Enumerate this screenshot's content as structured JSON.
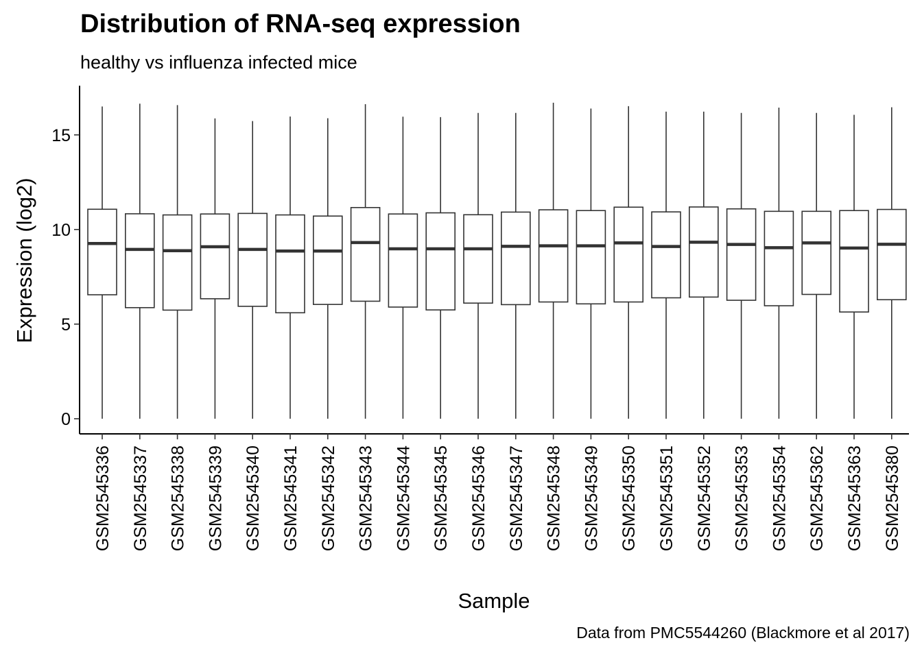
{
  "chart_data": {
    "type": "boxplot",
    "title": "Distribution of RNA-seq expression",
    "subtitle": "healthy vs influenza infected mice",
    "xlabel": "Sample",
    "ylabel": "Expression (log2)",
    "caption": "Data from PMC5544260 (Blackmore et al 2017)",
    "ylim": [
      -0.8,
      17.6
    ],
    "yticks": [
      0,
      5,
      10,
      15
    ],
    "grid": false,
    "legend": "none",
    "colors": {
      "box_stroke": "#333333",
      "box_fill": "#ffffff",
      "axis": "#000000"
    },
    "categories": [
      "GSM2545336",
      "GSM2545337",
      "GSM2545338",
      "GSM2545339",
      "GSM2545340",
      "GSM2545341",
      "GSM2545342",
      "GSM2545343",
      "GSM2545344",
      "GSM2545345",
      "GSM2545346",
      "GSM2545347",
      "GSM2545348",
      "GSM2545349",
      "GSM2545350",
      "GSM2545351",
      "GSM2545352",
      "GSM2545353",
      "GSM2545354",
      "GSM2545362",
      "GSM2545363",
      "GSM2545380"
    ],
    "boxes": [
      {
        "min": 0,
        "q1": 6.55,
        "median": 9.26,
        "q3": 11.07,
        "max": 16.5
      },
      {
        "min": 0,
        "q1": 5.87,
        "median": 8.95,
        "q3": 10.83,
        "max": 16.65
      },
      {
        "min": 0,
        "q1": 5.74,
        "median": 8.88,
        "q3": 10.77,
        "max": 16.57
      },
      {
        "min": 0,
        "q1": 6.34,
        "median": 9.09,
        "q3": 10.82,
        "max": 15.87
      },
      {
        "min": 0,
        "q1": 5.94,
        "median": 8.95,
        "q3": 10.85,
        "max": 15.73
      },
      {
        "min": 0,
        "q1": 5.6,
        "median": 8.86,
        "q3": 10.77,
        "max": 15.97
      },
      {
        "min": 0,
        "q1": 6.04,
        "median": 8.86,
        "q3": 10.71,
        "max": 15.88
      },
      {
        "min": 0,
        "q1": 6.21,
        "median": 9.31,
        "q3": 11.16,
        "max": 16.62
      },
      {
        "min": 0,
        "q1": 5.9,
        "median": 8.98,
        "q3": 10.82,
        "max": 15.96
      },
      {
        "min": 0,
        "q1": 5.75,
        "median": 8.98,
        "q3": 10.88,
        "max": 15.94
      },
      {
        "min": 0,
        "q1": 6.11,
        "median": 8.98,
        "q3": 10.78,
        "max": 16.16
      },
      {
        "min": 0,
        "q1": 6.03,
        "median": 9.11,
        "q3": 10.92,
        "max": 16.16
      },
      {
        "min": 0,
        "q1": 6.17,
        "median": 9.14,
        "q3": 11.04,
        "max": 16.7
      },
      {
        "min": 0,
        "q1": 6.07,
        "median": 9.14,
        "q3": 11.0,
        "max": 16.39
      },
      {
        "min": 0,
        "q1": 6.17,
        "median": 9.29,
        "q3": 11.18,
        "max": 16.52
      },
      {
        "min": 0,
        "q1": 6.39,
        "median": 9.1,
        "q3": 10.93,
        "max": 16.23
      },
      {
        "min": 0,
        "q1": 6.43,
        "median": 9.33,
        "q3": 11.19,
        "max": 16.23
      },
      {
        "min": 0,
        "q1": 6.26,
        "median": 9.21,
        "q3": 11.09,
        "max": 16.16
      },
      {
        "min": 0,
        "q1": 5.97,
        "median": 9.04,
        "q3": 10.96,
        "max": 16.44
      },
      {
        "min": 0,
        "q1": 6.57,
        "median": 9.29,
        "q3": 10.96,
        "max": 16.16
      },
      {
        "min": 0,
        "q1": 5.64,
        "median": 9.02,
        "q3": 11.0,
        "max": 16.06
      },
      {
        "min": 0,
        "q1": 6.29,
        "median": 9.22,
        "q3": 11.06,
        "max": 16.46
      }
    ]
  }
}
